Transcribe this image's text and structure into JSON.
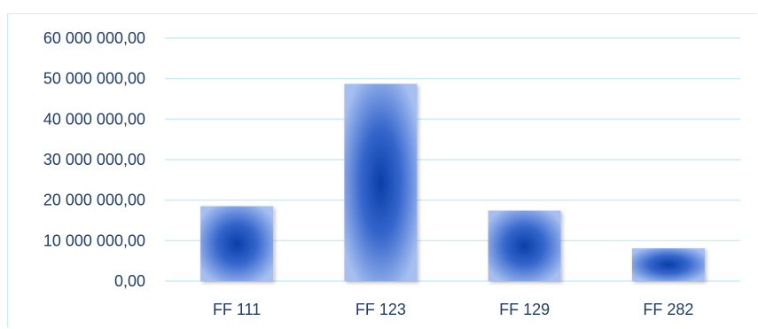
{
  "chart_data": {
    "type": "bar",
    "categories": [
      "FF 111",
      "FF 123",
      "FF 129",
      "FF 282"
    ],
    "values": [
      18500000,
      48700000,
      17400000,
      8100000
    ],
    "ylim": [
      0,
      60000000
    ],
    "y_ticks": [
      0,
      10000000,
      20000000,
      30000000,
      40000000,
      50000000,
      60000000
    ],
    "y_tick_labels": [
      "0,00",
      "10 000 000,00",
      "20 000 000,00",
      "30 000 000,00",
      "40 000 000,00",
      "50 000 000,00",
      "60 000 000,00"
    ],
    "grid": true,
    "legend": "none",
    "colors": {
      "bar_center": "#0a3fa8",
      "bar_edge": "#a6bff0",
      "grid": "#c9eef6",
      "text": "#1f3d6b"
    }
  }
}
